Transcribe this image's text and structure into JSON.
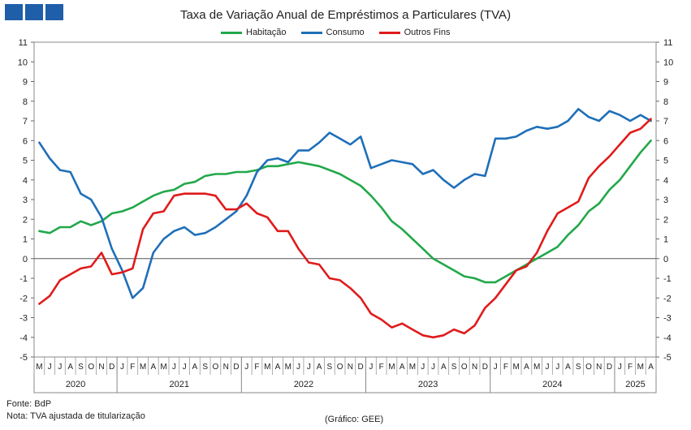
{
  "header": {
    "logo": "three-blue-squares-logo"
  },
  "chart_data": {
    "type": "line",
    "title": "Taxa de Variação Anual de Empréstimos a Particulares (TVA)",
    "xlabel": "",
    "ylabel": "",
    "ylim": [
      -5,
      11
    ],
    "yticks": [
      11,
      10,
      9,
      8,
      7,
      6,
      5,
      4,
      3,
      2,
      1,
      0,
      -1,
      -2,
      -3,
      -4,
      -5
    ],
    "grid": false,
    "legend_position": "top",
    "x": [
      "2020-05",
      "2020-06",
      "2020-07",
      "2020-08",
      "2020-09",
      "2020-10",
      "2020-11",
      "2020-12",
      "2021-01",
      "2021-02",
      "2021-03",
      "2021-04",
      "2021-05",
      "2021-06",
      "2021-07",
      "2021-08",
      "2021-09",
      "2021-10",
      "2021-11",
      "2021-12",
      "2022-01",
      "2022-02",
      "2022-03",
      "2022-04",
      "2022-05",
      "2022-06",
      "2022-07",
      "2022-08",
      "2022-09",
      "2022-10",
      "2022-11",
      "2022-12",
      "2023-01",
      "2023-02",
      "2023-03",
      "2023-04",
      "2023-05",
      "2023-06",
      "2023-07",
      "2023-08",
      "2023-09",
      "2023-10",
      "2023-11",
      "2023-12",
      "2024-01",
      "2024-02",
      "2024-03",
      "2024-04",
      "2024-05",
      "2024-06",
      "2024-07",
      "2024-08",
      "2024-09",
      "2024-10",
      "2024-11",
      "2024-12",
      "2025-01",
      "2025-02",
      "2025-03",
      "2025-04"
    ],
    "month_labels": [
      "M",
      "J",
      "J",
      "A",
      "S",
      "O",
      "N",
      "D",
      "J",
      "F",
      "M",
      "A",
      "M",
      "J",
      "J",
      "A",
      "S",
      "O",
      "N",
      "D",
      "J",
      "F",
      "M",
      "A",
      "M",
      "J",
      "J",
      "A",
      "S",
      "O",
      "N",
      "D",
      "J",
      "F",
      "M",
      "A",
      "M",
      "J",
      "J",
      "A",
      "S",
      "O",
      "N",
      "D",
      "J",
      "F",
      "M",
      "A",
      "M",
      "J",
      "J",
      "A",
      "S",
      "O",
      "N",
      "D",
      "J",
      "F",
      "M",
      "A"
    ],
    "years": [
      {
        "label": "2020",
        "months": 8
      },
      {
        "label": "2021",
        "months": 12
      },
      {
        "label": "2022",
        "months": 12
      },
      {
        "label": "2023",
        "months": 12
      },
      {
        "label": "2024",
        "months": 12
      },
      {
        "label": "2025",
        "months": 4
      }
    ],
    "series": [
      {
        "name": "Habitação",
        "color": "#22a84a",
        "values": [
          1.4,
          1.3,
          1.6,
          1.6,
          1.9,
          1.7,
          1.9,
          2.3,
          2.4,
          2.6,
          2.9,
          3.2,
          3.4,
          3.5,
          3.8,
          3.9,
          4.2,
          4.3,
          4.3,
          4.4,
          4.4,
          4.5,
          4.7,
          4.7,
          4.8,
          4.9,
          4.8,
          4.7,
          4.5,
          4.3,
          4.0,
          3.7,
          3.2,
          2.6,
          1.9,
          1.5,
          1.0,
          0.5,
          0.0,
          -0.3,
          -0.6,
          -0.9,
          -1.0,
          -1.2,
          -1.2,
          -0.9,
          -0.6,
          -0.3,
          0.0,
          0.3,
          0.6,
          1.2,
          1.7,
          2.4,
          2.8,
          3.5,
          4.0,
          4.7,
          5.4,
          6.0
        ]
      },
      {
        "name": "Consumo",
        "color": "#1f6fb8",
        "values": [
          5.9,
          5.1,
          4.5,
          4.4,
          3.3,
          3.0,
          2.1,
          0.5,
          -0.6,
          -2.0,
          -1.5,
          0.3,
          1.0,
          1.4,
          1.6,
          1.2,
          1.3,
          1.6,
          2.0,
          2.4,
          3.2,
          4.4,
          5.0,
          5.1,
          4.9,
          5.5,
          5.5,
          5.9,
          6.4,
          6.1,
          5.8,
          6.2,
          4.6,
          4.8,
          5.0,
          4.9,
          4.8,
          4.3,
          4.5,
          4.0,
          3.6,
          4.0,
          4.3,
          4.2,
          6.1,
          6.1,
          6.2,
          6.5,
          6.7,
          6.6,
          6.7,
          7.0,
          7.6,
          7.2,
          7.0,
          7.5,
          7.3,
          7.0,
          7.3,
          7.0
        ]
      },
      {
        "name": "Outros Fins",
        "color": "#e01b1b",
        "values": [
          -2.3,
          -1.9,
          -1.1,
          -0.8,
          -0.5,
          -0.4,
          0.3,
          -0.8,
          -0.7,
          -0.5,
          1.5,
          2.3,
          2.4,
          3.2,
          3.3,
          3.3,
          3.3,
          3.2,
          2.5,
          2.5,
          2.8,
          2.3,
          2.1,
          1.4,
          1.4,
          0.5,
          -0.2,
          -0.3,
          -1.0,
          -1.1,
          -1.5,
          -2.0,
          -2.8,
          -3.1,
          -3.5,
          -3.3,
          -3.6,
          -3.9,
          -4.0,
          -3.9,
          -3.6,
          -3.8,
          -3.4,
          -2.5,
          -2.0,
          -1.3,
          -0.6,
          -0.4,
          0.3,
          1.4,
          2.3,
          2.6,
          2.9,
          4.1,
          4.7,
          5.2,
          5.8,
          6.4,
          6.6,
          7.1
        ]
      }
    ]
  },
  "footer": {
    "source": "Fonte: BdP",
    "note": "Nota: TVA  ajustada de titularização",
    "credit": "(Gráfico: GEE)"
  }
}
